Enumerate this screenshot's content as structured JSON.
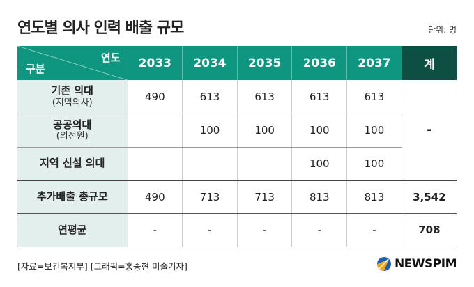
{
  "title": "연도별 의사 인력 배출 규모",
  "unit": "단위: 명",
  "header": {
    "year_label": "연도",
    "category_label": "구분",
    "years": [
      "2033",
      "2034",
      "2035",
      "2036",
      "2037"
    ],
    "total": "계"
  },
  "rows": [
    {
      "label": "기존 의대",
      "sub": "(지역의사)",
      "values": [
        "490",
        "613",
        "613",
        "613",
        "613"
      ]
    },
    {
      "label": "공공의대",
      "sub": "(의전원)",
      "values": [
        "",
        "100",
        "100",
        "100",
        "100"
      ]
    },
    {
      "label": "지역 신설 의대",
      "sub": "",
      "values": [
        "",
        "",
        "",
        "100",
        "100"
      ]
    }
  ],
  "merged_total": "-",
  "sum_row": {
    "label": "추가배출 총규모",
    "values": [
      "490",
      "713",
      "713",
      "813",
      "813"
    ],
    "total": "3,542"
  },
  "avg_row": {
    "label": "연평균",
    "values": [
      "-",
      "-",
      "-",
      "-",
      "-"
    ],
    "total": "708"
  },
  "source": "[자료=보건복지부] [그래픽=홍종현 미술기자]",
  "logo": "NEWSPIM",
  "colors": {
    "header": "#0e9680",
    "header_total": "#0d4f43",
    "label_bg": "#e3efec"
  }
}
